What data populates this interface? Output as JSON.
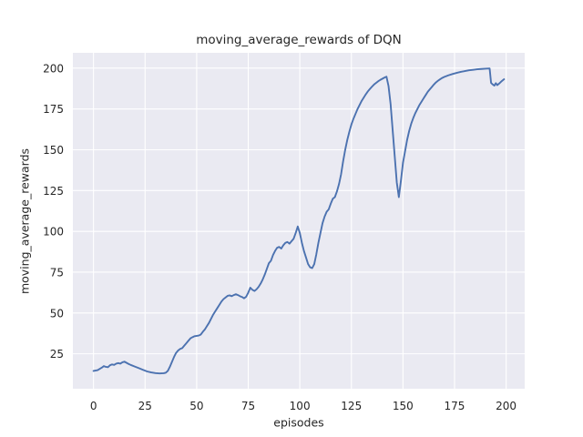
{
  "figure": {
    "title": "moving_average_rewards of DQN",
    "xlabel": "episodes",
    "ylabel": "moving_average_rewards",
    "background_color": "#ffffff",
    "plot_background_color": "#eaeaf2",
    "grid_color": "#ffffff",
    "line_color": "#4c72b0",
    "text_color": "#262626"
  },
  "chart_data": {
    "type": "line",
    "title": "moving_average_rewards of DQN",
    "xlabel": "episodes",
    "ylabel": "moving_average_rewards",
    "legend": false,
    "grid": true,
    "xlim": [
      -10,
      209
    ],
    "ylim": [
      3.6,
      209.4
    ],
    "xticks": [
      0,
      25,
      50,
      75,
      100,
      125,
      150,
      175,
      200
    ],
    "yticks": [
      25,
      50,
      75,
      100,
      125,
      150,
      175,
      200
    ],
    "series": [
      {
        "name": "moving_average_rewards",
        "color": "#4c72b0",
        "points": [
          [
            0,
            14.5
          ],
          [
            2,
            15
          ],
          [
            4,
            16.5
          ],
          [
            5,
            17.5
          ],
          [
            6,
            17
          ],
          [
            7,
            16.8
          ],
          [
            8,
            18
          ],
          [
            9,
            18.5
          ],
          [
            10,
            18.2
          ],
          [
            11,
            19
          ],
          [
            12,
            19.3
          ],
          [
            13,
            19
          ],
          [
            14,
            19.8
          ],
          [
            15,
            20.2
          ],
          [
            16,
            19.5
          ],
          [
            17,
            18.8
          ],
          [
            18,
            18.2
          ],
          [
            20,
            17.2
          ],
          [
            22,
            16.2
          ],
          [
            24,
            15.2
          ],
          [
            26,
            14.2
          ],
          [
            28,
            13.6
          ],
          [
            30,
            13.2
          ],
          [
            32,
            13
          ],
          [
            34,
            13.1
          ],
          [
            35,
            13.4
          ],
          [
            36,
            14.5
          ],
          [
            37,
            17
          ],
          [
            38,
            20
          ],
          [
            39,
            23
          ],
          [
            40,
            25.5
          ],
          [
            41,
            27
          ],
          [
            42,
            28
          ],
          [
            43,
            28.5
          ],
          [
            44,
            30
          ],
          [
            45,
            31.5
          ],
          [
            46,
            33
          ],
          [
            47,
            34.5
          ],
          [
            48,
            35.2
          ],
          [
            49,
            35.8
          ],
          [
            50,
            36
          ],
          [
            51,
            36.2
          ],
          [
            52,
            36.8
          ],
          [
            53,
            38.5
          ],
          [
            54,
            40
          ],
          [
            55,
            42
          ],
          [
            56,
            44
          ],
          [
            57,
            46.5
          ],
          [
            58,
            49
          ],
          [
            59,
            51
          ],
          [
            60,
            53
          ],
          [
            61,
            55
          ],
          [
            62,
            57
          ],
          [
            63,
            58.5
          ],
          [
            64,
            59.5
          ],
          [
            65,
            60.5
          ],
          [
            66,
            60.8
          ],
          [
            67,
            60.3
          ],
          [
            68,
            61
          ],
          [
            69,
            61.5
          ],
          [
            70,
            61
          ],
          [
            71,
            60.3
          ],
          [
            72,
            59.8
          ],
          [
            73,
            59
          ],
          [
            74,
            60
          ],
          [
            75,
            62.5
          ],
          [
            76,
            65.5
          ],
          [
            77,
            64.2
          ],
          [
            78,
            63.5
          ],
          [
            79,
            64.5
          ],
          [
            80,
            66
          ],
          [
            81,
            68
          ],
          [
            82,
            70.5
          ],
          [
            83,
            73.5
          ],
          [
            84,
            77
          ],
          [
            85,
            80.5
          ],
          [
            86,
            82
          ],
          [
            87,
            85.5
          ],
          [
            88,
            88
          ],
          [
            89,
            90
          ],
          [
            90,
            90.5
          ],
          [
            91,
            89.5
          ],
          [
            92,
            91.5
          ],
          [
            93,
            93
          ],
          [
            94,
            93.5
          ],
          [
            95,
            92.5
          ],
          [
            96,
            94
          ],
          [
            97,
            95.5
          ],
          [
            98,
            99
          ],
          [
            99,
            103
          ],
          [
            100,
            99
          ],
          [
            101,
            93
          ],
          [
            102,
            88
          ],
          [
            103,
            84
          ],
          [
            104,
            80
          ],
          [
            105,
            78
          ],
          [
            106,
            77.5
          ],
          [
            107,
            80
          ],
          [
            108,
            86
          ],
          [
            109,
            93
          ],
          [
            110,
            99
          ],
          [
            111,
            105
          ],
          [
            112,
            109
          ],
          [
            113,
            112
          ],
          [
            114,
            113.5
          ],
          [
            115,
            117
          ],
          [
            116,
            120
          ],
          [
            117,
            121
          ],
          [
            118,
            124.5
          ],
          [
            119,
            129
          ],
          [
            120,
            135
          ],
          [
            121,
            143
          ],
          [
            122,
            150
          ],
          [
            123,
            156
          ],
          [
            124,
            161
          ],
          [
            125,
            165.5
          ],
          [
            126,
            169
          ],
          [
            127,
            172
          ],
          [
            128,
            175
          ],
          [
            129,
            177.5
          ],
          [
            130,
            180
          ],
          [
            131,
            182
          ],
          [
            132,
            184
          ],
          [
            133,
            185.8
          ],
          [
            134,
            187.3
          ],
          [
            135,
            188.7
          ],
          [
            136,
            190
          ],
          [
            137,
            191
          ],
          [
            138,
            192
          ],
          [
            139,
            192.8
          ],
          [
            140,
            193.5
          ],
          [
            141,
            194.2
          ],
          [
            142,
            194.8
          ],
          [
            143,
            189
          ],
          [
            144,
            178
          ],
          [
            145,
            162
          ],
          [
            146,
            146
          ],
          [
            147,
            130
          ],
          [
            148,
            121
          ],
          [
            149,
            131
          ],
          [
            150,
            142
          ],
          [
            151,
            149
          ],
          [
            152,
            156
          ],
          [
            153,
            161.5
          ],
          [
            154,
            166
          ],
          [
            155,
            169.5
          ],
          [
            156,
            172.5
          ],
          [
            157,
            175
          ],
          [
            158,
            177.5
          ],
          [
            159,
            179.5
          ],
          [
            160,
            181.5
          ],
          [
            161,
            183.5
          ],
          [
            162,
            185.5
          ],
          [
            163,
            187
          ],
          [
            164,
            188.5
          ],
          [
            165,
            190
          ],
          [
            166,
            191.3
          ],
          [
            167,
            192.3
          ],
          [
            168,
            193.2
          ],
          [
            169,
            194
          ],
          [
            170,
            194.6
          ],
          [
            172,
            195.6
          ],
          [
            174,
            196.4
          ],
          [
            176,
            197.1
          ],
          [
            178,
            197.7
          ],
          [
            180,
            198.2
          ],
          [
            182,
            198.7
          ],
          [
            184,
            199
          ],
          [
            186,
            199.3
          ],
          [
            188,
            199.5
          ],
          [
            190,
            199.7
          ],
          [
            192,
            199.8
          ],
          [
            192.7,
            191
          ],
          [
            193.5,
            190
          ],
          [
            194.3,
            189.3
          ],
          [
            195,
            190.8
          ],
          [
            195.7,
            189.6
          ],
          [
            197,
            191
          ],
          [
            198,
            192.2
          ],
          [
            199,
            193.2
          ]
        ]
      }
    ]
  }
}
